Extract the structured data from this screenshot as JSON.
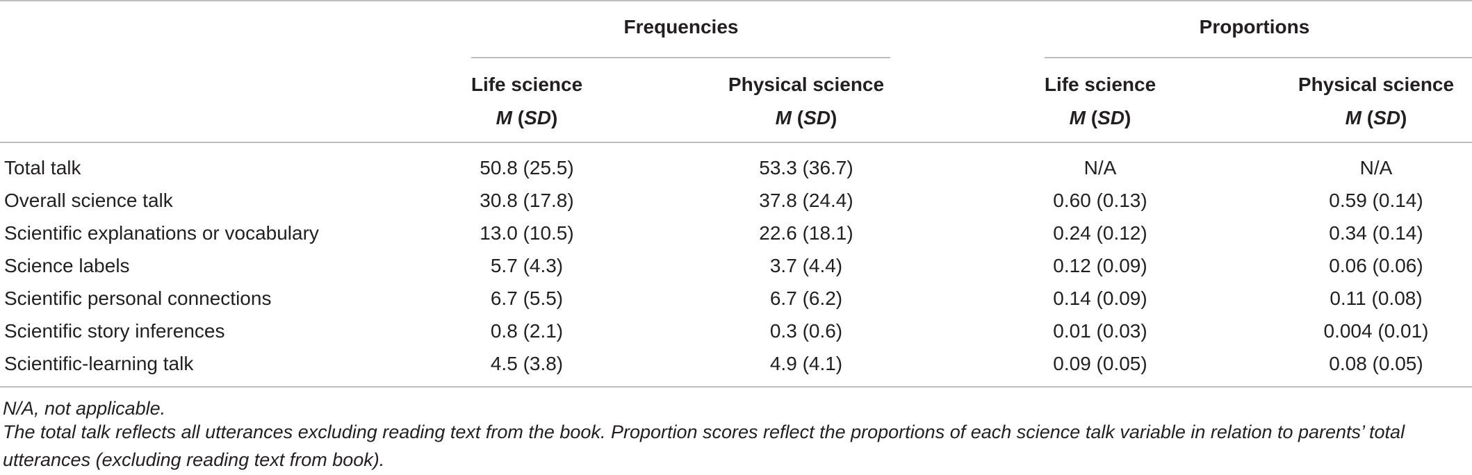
{
  "table": {
    "group_headers": [
      "Frequencies",
      "Proportions"
    ],
    "column_headers": [
      {
        "label": "Life science",
        "stat_m": "M",
        "stat_sd": "SD"
      },
      {
        "label": "Physical science",
        "stat_m": "M",
        "stat_sd": "SD"
      },
      {
        "label": "Life science",
        "stat_m": "M",
        "stat_sd": "SD"
      },
      {
        "label": "Physical science",
        "stat_m": "M",
        "stat_sd": "SD"
      }
    ],
    "rows": [
      {
        "label": "Total talk",
        "cells": [
          "50.8 (25.5)",
          "53.3 (36.7)",
          "N/A",
          "N/A"
        ]
      },
      {
        "label": "Overall science talk",
        "cells": [
          "30.8 (17.8)",
          "37.8 (24.4)",
          "0.60 (0.13)",
          "0.59 (0.14)"
        ]
      },
      {
        "label": "Scientific explanations or vocabulary",
        "cells": [
          "13.0 (10.5)",
          "22.6 (18.1)",
          "0.24 (0.12)",
          "0.34 (0.14)"
        ]
      },
      {
        "label": "Science labels",
        "cells": [
          "5.7 (4.3)",
          "3.7 (4.4)",
          "0.12 (0.09)",
          "0.06 (0.06)"
        ]
      },
      {
        "label": "Scientific personal connections",
        "cells": [
          "6.7 (5.5)",
          "6.7 (6.2)",
          "0.14 (0.09)",
          "0.11 (0.08)"
        ]
      },
      {
        "label": "Scientific story inferences",
        "cells": [
          "0.8 (2.1)",
          "0.3 (0.6)",
          "0.01 (0.03)",
          "0.004 (0.01)"
        ]
      },
      {
        "label": "Scientific-learning talk",
        "cells": [
          "4.5 (3.8)",
          "4.9 (4.1)",
          "0.09 (0.05)",
          "0.08 (0.05)"
        ]
      }
    ]
  },
  "footnotes": {
    "note1": "N/A, not applicable.",
    "note2": "The total talk reflects all utterances excluding reading text from the book. Proportion scores reflect the proportions of each science talk variable in relation to parents’ total utterances (excluding reading text from book)."
  }
}
